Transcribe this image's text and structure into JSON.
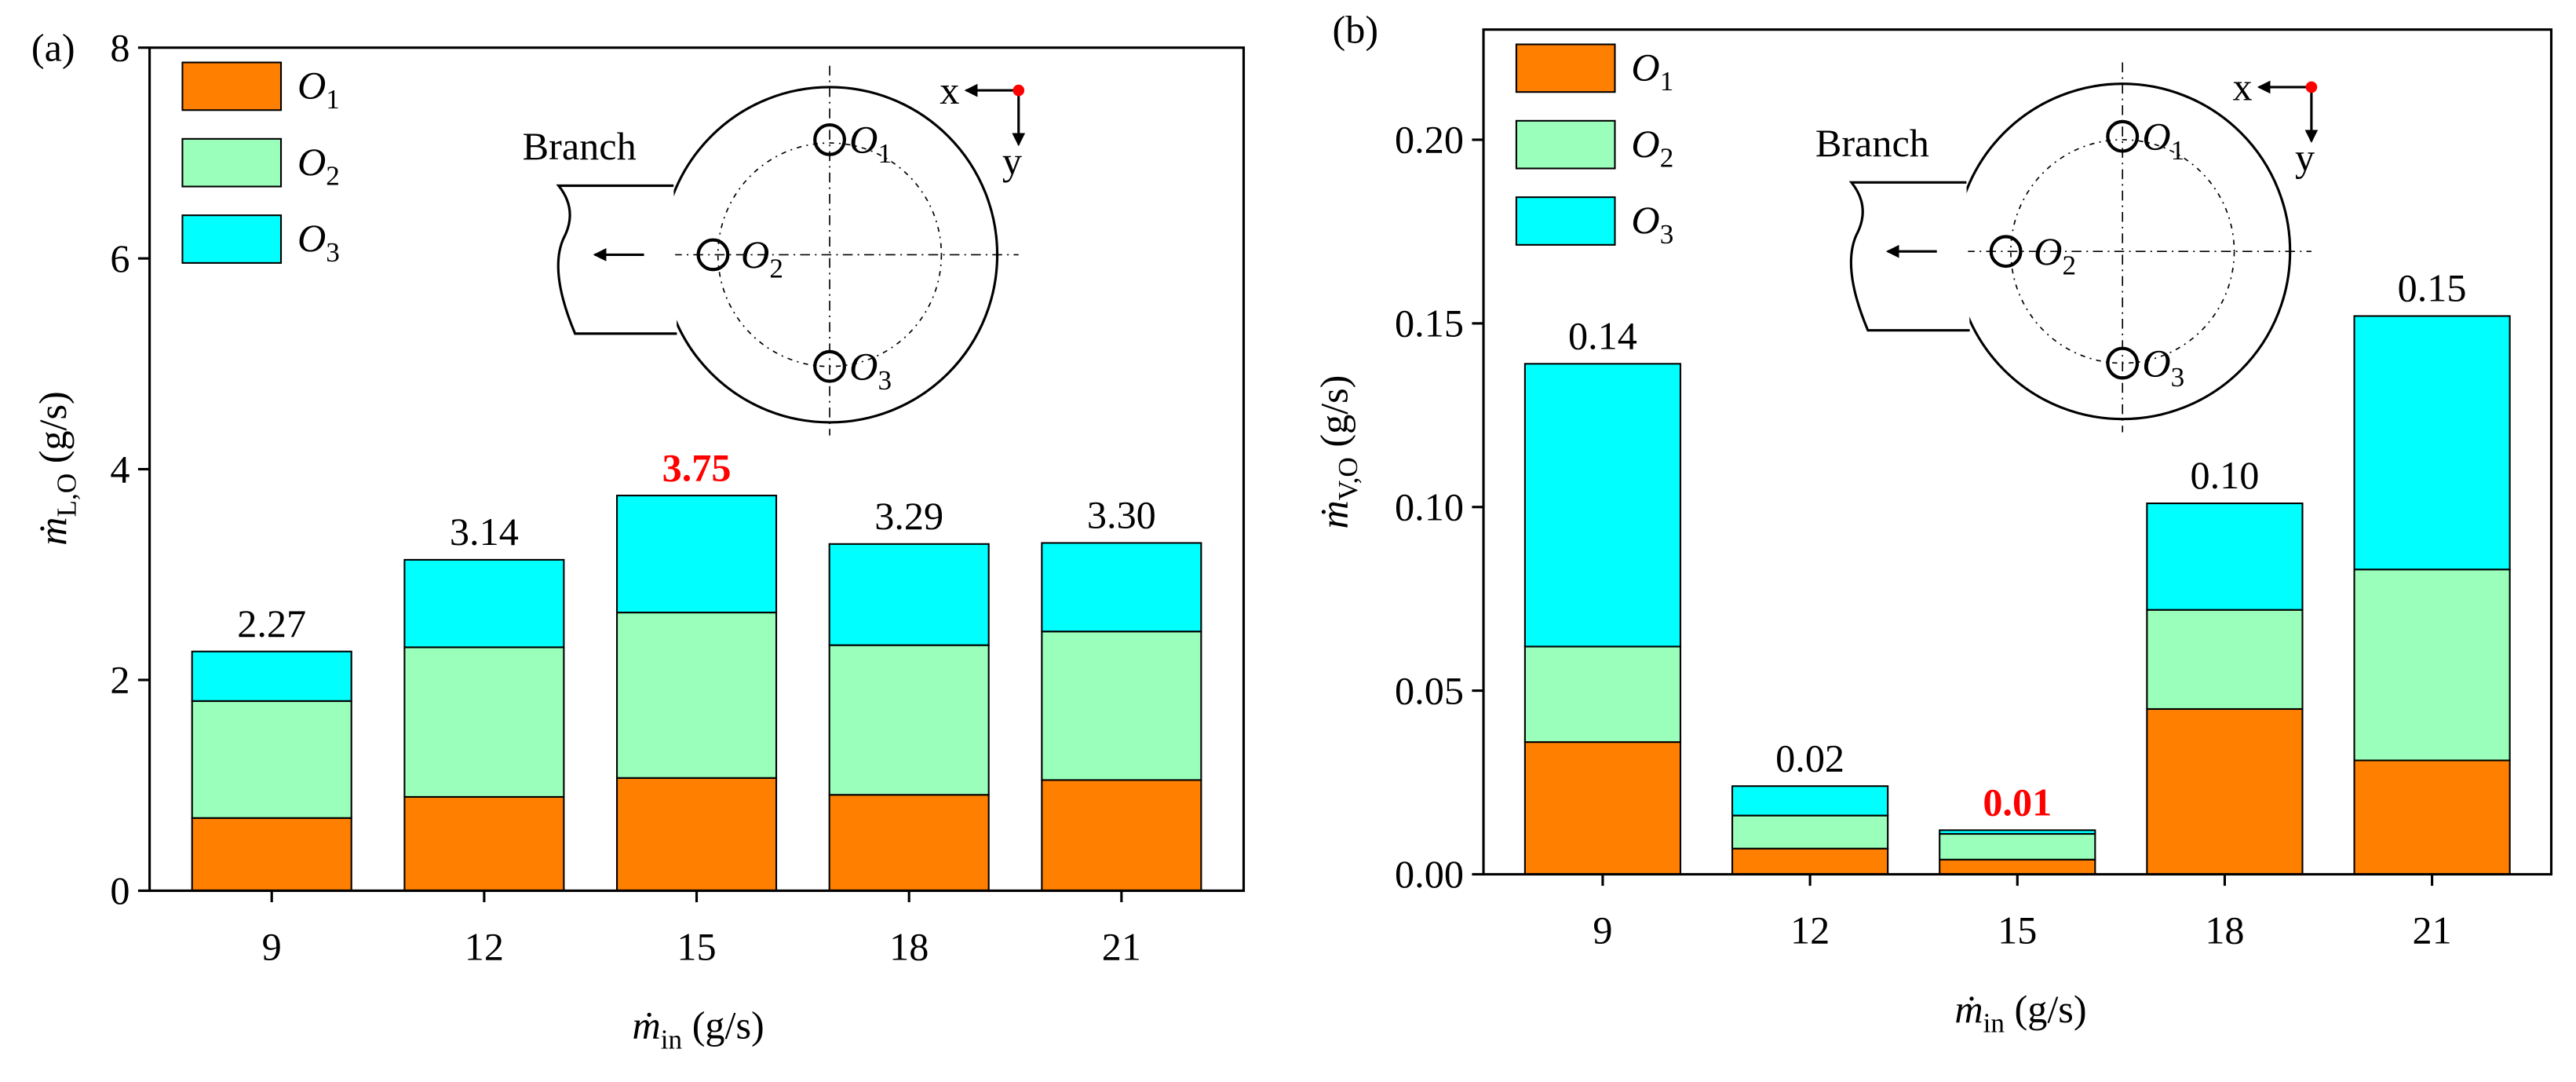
{
  "chart_data": [
    {
      "type": "bar",
      "stacked": true,
      "panel_label": "(a)",
      "categories": [
        "9",
        "12",
        "15",
        "18",
        "21"
      ],
      "series": [
        {
          "name": "O1",
          "color": "#ff8000",
          "values": [
            0.69,
            0.89,
            1.07,
            0.91,
            1.05
          ]
        },
        {
          "name": "O2",
          "color": "#99ffbb",
          "values": [
            1.11,
            1.42,
            1.57,
            1.42,
            1.41
          ]
        },
        {
          "name": "O3",
          "color": "#00ffff",
          "values": [
            0.47,
            0.83,
            1.11,
            0.96,
            0.84
          ]
        }
      ],
      "totals": {
        "values": [
          2.27,
          3.14,
          3.75,
          3.29,
          3.3
        ],
        "value_labels": [
          "2.27",
          "3.14",
          "3.75",
          "3.29",
          "3.30"
        ],
        "highlight": 2,
        "highlight_color": "#ff0000"
      },
      "ylim": [
        0,
        8
      ],
      "yticks": [
        0,
        2,
        4,
        6,
        8
      ],
      "ylabel": {
        "symbol": "ṁ",
        "subscript": "L,O",
        "unit": " (g/s)"
      },
      "xlabel": {
        "symbol": "ṁ",
        "subscript": "in",
        "unit": " (g/s)"
      },
      "legend": "upper left",
      "inset": {
        "label": "Branch",
        "markers": [
          "O1",
          "O2",
          "O3"
        ],
        "axes": [
          "x",
          "y"
        ],
        "origin_color": "#ff0000"
      }
    },
    {
      "type": "bar",
      "stacked": true,
      "panel_label": "(b)",
      "categories": [
        "9",
        "12",
        "15",
        "18",
        "21"
      ],
      "series": [
        {
          "name": "O1",
          "color": "#ff8000",
          "values": [
            0.036,
            0.007,
            0.004,
            0.045,
            0.031
          ]
        },
        {
          "name": "O2",
          "color": "#99ffbb",
          "values": [
            0.026,
            0.009,
            0.007,
            0.027,
            0.052
          ]
        },
        {
          "name": "O3",
          "color": "#00ffff",
          "values": [
            0.077,
            0.008,
            0.001,
            0.029,
            0.069
          ]
        }
      ],
      "totals": {
        "values": [
          0.139,
          0.024,
          0.012,
          0.101,
          0.152
        ],
        "value_labels": [
          "0.14",
          "0.02",
          "0.01",
          "0.10",
          "0.15"
        ],
        "highlight": 2,
        "highlight_color": "#ff0000"
      },
      "ylim": [
        0,
        0.23
      ],
      "yticks": [
        {
          "value": 0,
          "label": "0.00"
        },
        {
          "value": 0.05,
          "label": "0.05"
        },
        {
          "value": 0.1,
          "label": "0.10"
        },
        {
          "value": 0.15,
          "label": "0.15"
        },
        {
          "value": 0.2,
          "label": "0.20"
        }
      ],
      "ylabel": {
        "symbol": "ṁ",
        "subscript": "V,O",
        "unit": " (g/s)"
      },
      "xlabel": {
        "symbol": "ṁ",
        "subscript": "in",
        "unit": " (g/s)"
      },
      "legend": "upper left",
      "inset": {
        "label": "Branch",
        "markers": [
          "O1",
          "O2",
          "O3"
        ],
        "axes": [
          "x",
          "y"
        ],
        "origin_color": "#ff0000"
      }
    }
  ]
}
